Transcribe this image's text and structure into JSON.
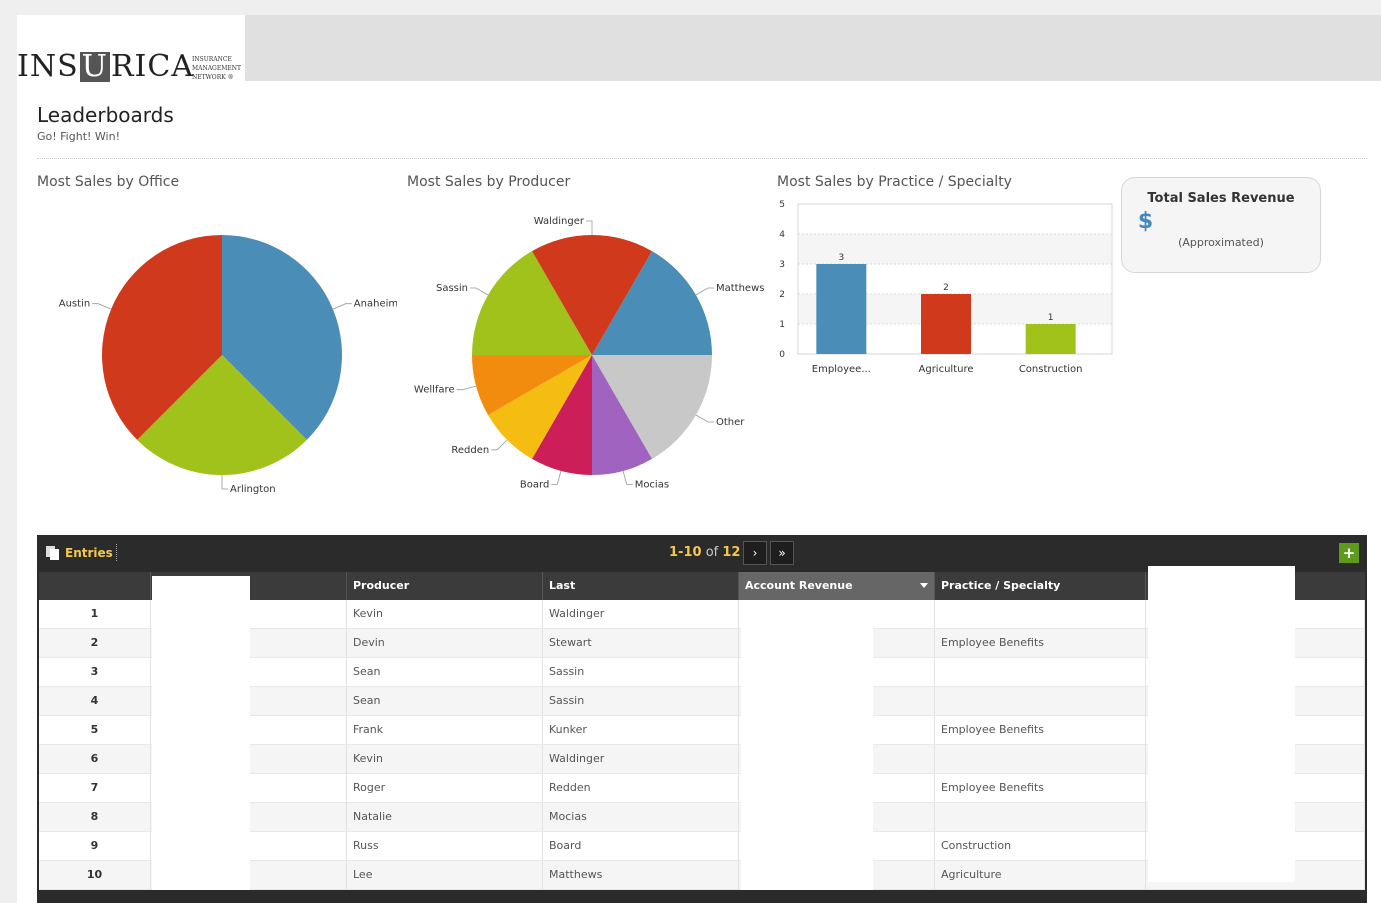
{
  "header": {
    "logo_word_pre": "INS",
    "logo_word_u": "U",
    "logo_word_post": "RICA",
    "logo_sub_1": "INSURANCE",
    "logo_sub_2": "MANAGEMENT",
    "logo_sub_3": "NETWORK ®"
  },
  "page": {
    "title": "Leaderboards",
    "subtitle": "Go! Fight! Win!"
  },
  "charts": {
    "office_title": "Most Sales by Office",
    "producer_title": "Most Sales by Producer",
    "practice_title": "Most Sales by Practice / Specialty"
  },
  "chart_data": [
    {
      "type": "pie",
      "title": "Most Sales by Office",
      "labels": [
        "Anaheim",
        "Arlington",
        "Austin"
      ],
      "values": [
        3,
        2,
        3
      ],
      "colors": [
        "#4a8db7",
        "#a0c21a",
        "#d1391c"
      ]
    },
    {
      "type": "pie",
      "title": "Most Sales by Producer",
      "labels": [
        "Matthews",
        "Other",
        "Mocias",
        "Board",
        "Redden",
        "Wellfare",
        "Sassin",
        "Waldinger"
      ],
      "values": [
        1,
        1,
        0.5,
        0.5,
        0.5,
        0.5,
        1,
        1
      ],
      "colors": [
        "#4a8db7",
        "#c8c8c8",
        "#a064c0",
        "#cc1f5a",
        "#f5bc12",
        "#f28c0f",
        "#a0c21a",
        "#d1391c"
      ]
    },
    {
      "type": "bar",
      "title": "Most Sales by Practice / Specialty",
      "categories": [
        "Employee...",
        "Agriculture",
        "Construction"
      ],
      "values": [
        3,
        2,
        1
      ],
      "colors": [
        "#4a8db7",
        "#d1391c",
        "#a0c21a"
      ],
      "ylim": [
        0,
        5
      ],
      "yticks": [
        "0",
        "1",
        "2",
        "3",
        "4",
        "5"
      ],
      "grid": true
    }
  ],
  "revenue": {
    "title": "Total Sales Revenue",
    "value": "$",
    "note": "(Approximated)"
  },
  "grid": {
    "entries_label": "Entries",
    "pager_range": "1-10",
    "pager_of": "of",
    "pager_total": "12",
    "next_icon": "›",
    "last_icon": "»",
    "add_icon": "+",
    "columns": {
      "producer": "Producer",
      "last": "Last",
      "account_revenue": "Account Revenue",
      "practice": "Practice / Specialty"
    },
    "rows": [
      {
        "idx": "1",
        "producer": "Kevin",
        "last": "Waldinger",
        "practice": ""
      },
      {
        "idx": "2",
        "producer": "Devin",
        "last": "Stewart",
        "practice": "Employee Benefits"
      },
      {
        "idx": "3",
        "producer": "Sean",
        "last": "Sassin",
        "practice": ""
      },
      {
        "idx": "4",
        "producer": "Sean",
        "last": "Sassin",
        "practice": ""
      },
      {
        "idx": "5",
        "producer": "Frank",
        "last": "Kunker",
        "practice": "Employee Benefits"
      },
      {
        "idx": "6",
        "producer": "Kevin",
        "last": "Waldinger",
        "practice": ""
      },
      {
        "idx": "7",
        "producer": "Roger",
        "last": "Redden",
        "practice": "Employee Benefits"
      },
      {
        "idx": "8",
        "producer": "Natalie",
        "last": "Mocias",
        "practice": ""
      },
      {
        "idx": "9",
        "producer": "Russ",
        "last": "Board",
        "practice": "Construction"
      },
      {
        "idx": "10",
        "producer": "Lee",
        "last": "Matthews",
        "practice": "Agriculture"
      }
    ]
  }
}
